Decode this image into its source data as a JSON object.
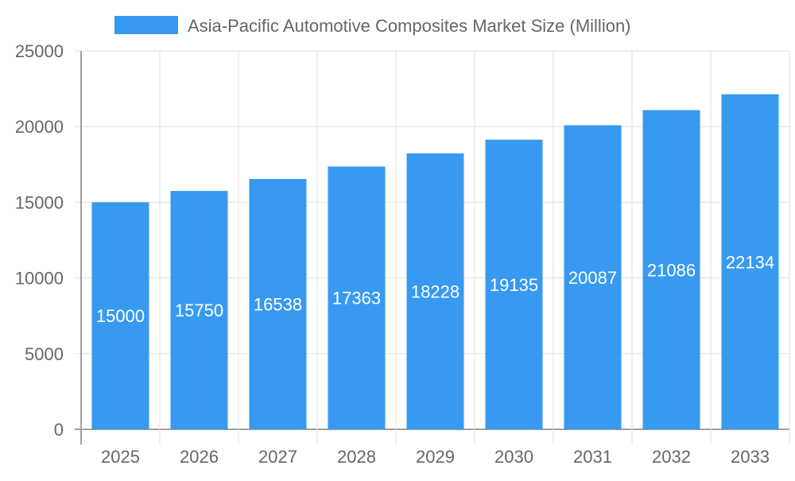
{
  "chart_data": {
    "type": "bar",
    "title": "",
    "xlabel": "",
    "ylabel": "",
    "categories": [
      "2025",
      "2026",
      "2027",
      "2028",
      "2029",
      "2030",
      "2031",
      "2032",
      "2033"
    ],
    "series": [
      {
        "name": "Asia-Pacific Automotive Composites Market Size (Million)",
        "values": [
          15000,
          15750,
          16538,
          17363,
          18228,
          19135,
          20087,
          21086,
          22134
        ]
      }
    ],
    "ylim": [
      0,
      25000
    ],
    "yticks": [
      0,
      5000,
      10000,
      15000,
      20000,
      25000
    ],
    "grid": true,
    "legend": "top",
    "data_labels": true,
    "colors": {
      "bar": "#379AF0",
      "grid": "#e0e0e0",
      "axis": "#a0a0a0",
      "text": "#666666",
      "label": "#ffffff"
    }
  }
}
